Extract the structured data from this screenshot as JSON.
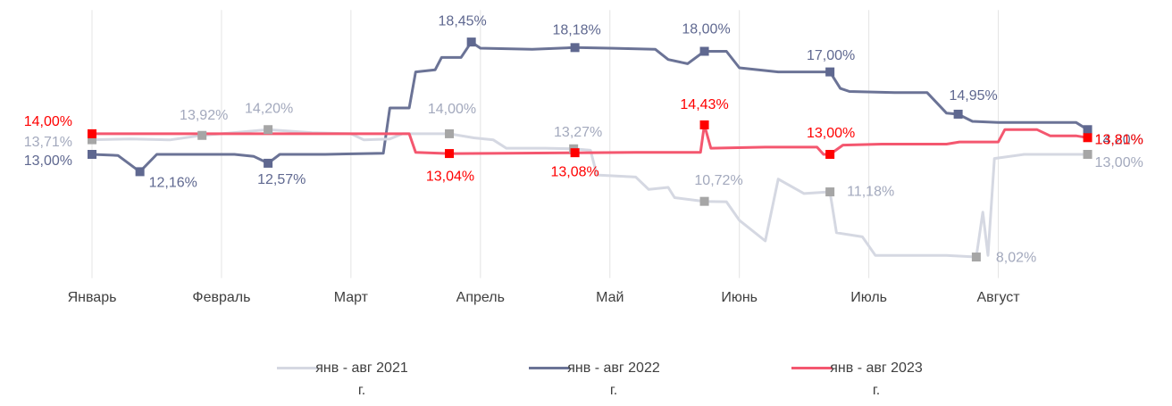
{
  "chart_data": {
    "type": "line",
    "xlim": [
      0,
      7.7
    ],
    "ylim": [
      7,
      20
    ],
    "grid": true,
    "xticks": [
      {
        "value": 0,
        "label": "Январь"
      },
      {
        "value": 1,
        "label": "Февраль"
      },
      {
        "value": 2,
        "label": "Март"
      },
      {
        "value": 3,
        "label": "Апрель"
      },
      {
        "value": 4,
        "label": "Май"
      },
      {
        "value": 5,
        "label": "Июнь"
      },
      {
        "value": 6,
        "label": "Июль"
      },
      {
        "value": 7,
        "label": "Август"
      }
    ],
    "legend": "bottom",
    "series": [
      {
        "name": "янв - авг 2021 г.",
        "color": "#d5d8e2",
        "marker_color": "#a6a6a6",
        "label_color": "#a3a9bd",
        "x": [
          0,
          0.3,
          0.6,
          0.85,
          1.0,
          1.36,
          1.7,
          2.0,
          2.1,
          2.3,
          2.4,
          2.76,
          2.95,
          3.1,
          3.2,
          3.5,
          3.72,
          3.85,
          3.9,
          4.2,
          4.3,
          4.45,
          4.5,
          4.73,
          4.9,
          5.0,
          5.2,
          5.3,
          5.5,
          5.7,
          5.75,
          5.95,
          6.05,
          6.6,
          6.83,
          6.88,
          6.92,
          6.97,
          7.2,
          7.69
        ],
        "values": [
          13.71,
          13.75,
          13.7,
          13.92,
          14.0,
          14.2,
          14.05,
          14.0,
          13.7,
          13.75,
          14.0,
          14.0,
          13.8,
          13.7,
          13.3,
          13.3,
          13.27,
          13.2,
          12.0,
          11.9,
          11.3,
          11.4,
          10.9,
          10.72,
          10.7,
          9.8,
          8.8,
          11.8,
          11.1,
          11.18,
          9.2,
          9.0,
          8.1,
          8.1,
          8.02,
          10.2,
          8.1,
          12.8,
          13.0,
          13.0
        ],
        "markers": {
          "x": [
            0,
            0.85,
            1.36,
            2.76,
            3.72,
            4.73,
            5.7,
            6.83,
            7.69
          ],
          "values": [
            13.71,
            13.92,
            14.2,
            14.0,
            13.27,
            10.72,
            11.18,
            8.02,
            13.0
          ],
          "value_labels": [
            "13,71%",
            "13,92%",
            "14,20%",
            "14,00%",
            "13,27%",
            "10,72%",
            "11,18%",
            "8,02%",
            "13,00%"
          ]
        }
      },
      {
        "name": "янв - авг 2022 г.",
        "color": "#6b7396",
        "marker_color": "#5f6890",
        "label_color": "#5f6890",
        "x": [
          0,
          0.2,
          0.37,
          0.5,
          0.8,
          1.1,
          1.25,
          1.36,
          1.45,
          1.8,
          2.25,
          2.3,
          2.45,
          2.5,
          2.65,
          2.7,
          2.85,
          2.93,
          3.0,
          3.4,
          3.73,
          4.0,
          4.35,
          4.45,
          4.6,
          4.73,
          4.9,
          5.0,
          5.3,
          5.7,
          5.78,
          5.85,
          6.2,
          6.45,
          6.6,
          6.69,
          6.8,
          7.0,
          7.6,
          7.69
        ],
        "values": [
          13.0,
          12.95,
          12.16,
          13.0,
          13.0,
          13.0,
          12.9,
          12.57,
          13.0,
          13.0,
          13.05,
          15.25,
          15.25,
          17.0,
          17.1,
          17.7,
          17.7,
          18.45,
          18.15,
          18.1,
          18.18,
          18.15,
          18.1,
          17.6,
          17.4,
          18.0,
          18.0,
          17.2,
          17.0,
          17.0,
          16.2,
          16.05,
          16.0,
          16.0,
          15.0,
          14.95,
          14.6,
          14.55,
          14.55,
          14.2
        ],
        "markers": {
          "x": [
            0,
            0.37,
            1.36,
            2.93,
            3.73,
            4.73,
            5.7,
            6.69,
            7.69
          ],
          "values": [
            13.0,
            12.16,
            12.57,
            18.45,
            18.18,
            18.0,
            17.0,
            14.95,
            14.2
          ],
          "value_labels": [
            "13,00%",
            "12,16%",
            "12,57%",
            "18,45%",
            "18,18%",
            "18,00%",
            "17,00%",
            "14,95%",
            "14,20%"
          ]
        }
      },
      {
        "name": "янв - авг 2023 г.",
        "color": "#f4576f",
        "marker_color": "#ff0000",
        "label_color": "#ff0000",
        "x": [
          0,
          1.0,
          2.0,
          2.45,
          2.5,
          2.76,
          3.2,
          3.73,
          4.2,
          4.7,
          4.73,
          4.78,
          5.2,
          5.6,
          5.65,
          5.7,
          5.8,
          6.1,
          6.6,
          6.7,
          7.0,
          7.05,
          7.3,
          7.4,
          7.6,
          7.69
        ],
        "values": [
          14.0,
          14.0,
          14.0,
          14.0,
          13.1,
          13.04,
          13.05,
          13.08,
          13.1,
          13.1,
          14.43,
          13.3,
          13.35,
          13.35,
          13.0,
          13.0,
          13.45,
          13.5,
          13.5,
          13.6,
          13.6,
          14.2,
          14.2,
          13.9,
          13.9,
          13.81
        ],
        "markers": {
          "x": [
            0,
            2.76,
            3.73,
            4.73,
            5.7,
            7.69
          ],
          "values": [
            14.0,
            13.04,
            13.08,
            14.43,
            13.0,
            13.81
          ],
          "value_labels": [
            "14,00%",
            "13,04%",
            "13,08%",
            "14,43%",
            "13,00%",
            "13,81%"
          ]
        }
      }
    ]
  }
}
